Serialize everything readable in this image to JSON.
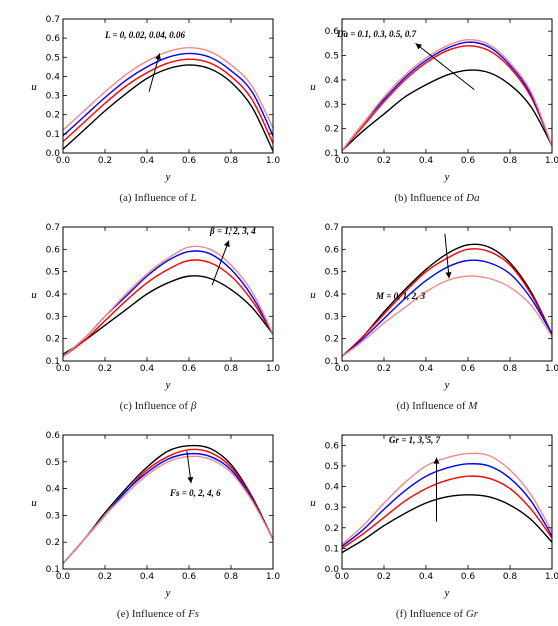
{
  "chart_data": [
    {
      "type": "line",
      "caption_prefix": "(a) Influence of ",
      "caption_var": "L",
      "xlabel": "y",
      "ylabel": "u",
      "xlim": [
        0,
        1
      ],
      "ylim": [
        0,
        0.7
      ],
      "xticks": [
        "0.0",
        "0.2",
        "0.4",
        "0.6",
        "0.8",
        "1.0"
      ],
      "yticks": [
        "0.0",
        "0.1",
        "0.2",
        "0.3",
        "0.4",
        "0.5",
        "0.6",
        "0.7"
      ],
      "annotation": "L = 0, 0.02, 0.04, 0.06",
      "arrow": {
        "from": [
          0.41,
          0.32
        ],
        "to": [
          0.46,
          0.52
        ]
      },
      "series": [
        {
          "color": "#000000",
          "x": [
            0,
            0.1,
            0.2,
            0.3,
            0.4,
            0.5,
            0.6,
            0.7,
            0.8,
            0.9,
            1.0
          ],
          "y": [
            0.02,
            0.12,
            0.22,
            0.31,
            0.39,
            0.44,
            0.46,
            0.44,
            0.37,
            0.24,
            0.01
          ]
        },
        {
          "color": "#ff0000",
          "x": [
            0,
            0.1,
            0.2,
            0.3,
            0.4,
            0.5,
            0.6,
            0.7,
            0.8,
            0.9,
            1.0
          ],
          "y": [
            0.06,
            0.16,
            0.26,
            0.35,
            0.42,
            0.47,
            0.49,
            0.47,
            0.4,
            0.28,
            0.05
          ]
        },
        {
          "color": "#0000ff",
          "x": [
            0,
            0.1,
            0.2,
            0.3,
            0.4,
            0.5,
            0.6,
            0.7,
            0.8,
            0.9,
            1.0
          ],
          "y": [
            0.09,
            0.19,
            0.29,
            0.38,
            0.45,
            0.5,
            0.52,
            0.5,
            0.43,
            0.32,
            0.09
          ]
        },
        {
          "color": "#f08a8a",
          "x": [
            0,
            0.1,
            0.2,
            0.3,
            0.4,
            0.5,
            0.6,
            0.7,
            0.8,
            0.9,
            1.0
          ],
          "y": [
            0.12,
            0.22,
            0.32,
            0.41,
            0.48,
            0.53,
            0.55,
            0.53,
            0.46,
            0.35,
            0.13
          ]
        }
      ]
    },
    {
      "type": "line",
      "caption_prefix": "(b) Influence of ",
      "caption_var": "Da",
      "xlabel": "y",
      "ylabel": "u",
      "xlim": [
        0,
        1
      ],
      "ylim": [
        0.1,
        0.65
      ],
      "xticks": [
        "0.0",
        "0.2",
        "0.4",
        "0.6",
        "0.8",
        "1.0"
      ],
      "yticks": [
        "0.1",
        "0.2",
        "0.3",
        "0.4",
        "0.5",
        "0.6"
      ],
      "annotation": "Da = 0.1, 0.3, 0.5, 0.7",
      "arrow": {
        "from": [
          0.63,
          0.36
        ],
        "to": [
          0.35,
          0.55
        ]
      },
      "series": [
        {
          "color": "#000000",
          "x": [
            0,
            0.1,
            0.2,
            0.3,
            0.4,
            0.5,
            0.6,
            0.7,
            0.8,
            0.9,
            1.0
          ],
          "y": [
            0.11,
            0.19,
            0.26,
            0.33,
            0.38,
            0.42,
            0.44,
            0.43,
            0.38,
            0.29,
            0.13
          ]
        },
        {
          "color": "#ff0000",
          "x": [
            0,
            0.1,
            0.2,
            0.3,
            0.4,
            0.5,
            0.6,
            0.7,
            0.8,
            0.9,
            1.0
          ],
          "y": [
            0.11,
            0.21,
            0.31,
            0.4,
            0.47,
            0.52,
            0.54,
            0.52,
            0.45,
            0.33,
            0.13
          ]
        },
        {
          "color": "#0000ff",
          "x": [
            0,
            0.1,
            0.2,
            0.3,
            0.4,
            0.5,
            0.6,
            0.7,
            0.8,
            0.9,
            1.0
          ],
          "y": [
            0.11,
            0.22,
            0.32,
            0.41,
            0.48,
            0.53,
            0.555,
            0.535,
            0.46,
            0.34,
            0.13
          ]
        },
        {
          "color": "#f08a8a",
          "x": [
            0,
            0.1,
            0.2,
            0.3,
            0.4,
            0.5,
            0.6,
            0.7,
            0.8,
            0.9,
            1.0
          ],
          "y": [
            0.11,
            0.22,
            0.33,
            0.42,
            0.49,
            0.54,
            0.565,
            0.545,
            0.47,
            0.35,
            0.13
          ]
        }
      ]
    },
    {
      "type": "line",
      "caption_prefix": "(c) Influence of ",
      "caption_var": "β",
      "xlabel": "y",
      "ylabel": "u",
      "xlim": [
        0,
        1
      ],
      "ylim": [
        0.1,
        0.7
      ],
      "xticks": [
        "0.0",
        "0.2",
        "0.4",
        "0.6",
        "0.8",
        "1.0"
      ],
      "yticks": [
        "0.1",
        "0.2",
        "0.3",
        "0.4",
        "0.5",
        "0.6",
        "0.7"
      ],
      "annotation": "β = 1, 2, 3, 4",
      "arrow": {
        "from": [
          0.71,
          0.44
        ],
        "to": [
          0.79,
          0.64
        ]
      },
      "series": [
        {
          "color": "#000000",
          "x": [
            0,
            0.1,
            0.2,
            0.3,
            0.4,
            0.5,
            0.6,
            0.7,
            0.8,
            0.9,
            1.0
          ],
          "y": [
            0.13,
            0.19,
            0.26,
            0.33,
            0.4,
            0.45,
            0.48,
            0.47,
            0.42,
            0.34,
            0.22
          ]
        },
        {
          "color": "#ff0000",
          "x": [
            0,
            0.1,
            0.2,
            0.3,
            0.4,
            0.5,
            0.6,
            0.7,
            0.8,
            0.9,
            1.0
          ],
          "y": [
            0.12,
            0.19,
            0.28,
            0.37,
            0.45,
            0.51,
            0.55,
            0.54,
            0.48,
            0.37,
            0.22
          ]
        },
        {
          "color": "#0000ff",
          "x": [
            0,
            0.1,
            0.2,
            0.3,
            0.4,
            0.5,
            0.6,
            0.7,
            0.8,
            0.9,
            1.0
          ],
          "y": [
            0.12,
            0.2,
            0.3,
            0.39,
            0.48,
            0.55,
            0.59,
            0.58,
            0.51,
            0.39,
            0.22
          ]
        },
        {
          "color": "#f08a8a",
          "x": [
            0,
            0.1,
            0.2,
            0.3,
            0.4,
            0.5,
            0.6,
            0.7,
            0.8,
            0.9,
            1.0
          ],
          "y": [
            0.12,
            0.2,
            0.3,
            0.4,
            0.49,
            0.56,
            0.61,
            0.6,
            0.53,
            0.41,
            0.22
          ]
        }
      ]
    },
    {
      "type": "line",
      "caption_prefix": "(d) Influence of ",
      "caption_var": "M",
      "xlabel": "y",
      "ylabel": "u",
      "xlim": [
        0,
        1
      ],
      "ylim": [
        0.1,
        0.7
      ],
      "xticks": [
        "0.0",
        "0.2",
        "0.4",
        "0.6",
        "0.8",
        "1.0"
      ],
      "yticks": [
        "0.1",
        "0.2",
        "0.3",
        "0.4",
        "0.5",
        "0.6",
        "0.7"
      ],
      "annotation": "M = 0, 1, 2, 3",
      "arrow": {
        "from": [
          0.49,
          0.67
        ],
        "to": [
          0.51,
          0.47
        ]
      },
      "series": [
        {
          "color": "#000000",
          "x": [
            0,
            0.1,
            0.2,
            0.3,
            0.4,
            0.5,
            0.6,
            0.7,
            0.8,
            0.9,
            1.0
          ],
          "y": [
            0.12,
            0.21,
            0.32,
            0.42,
            0.51,
            0.58,
            0.62,
            0.61,
            0.54,
            0.41,
            0.22
          ]
        },
        {
          "color": "#ff0000",
          "x": [
            0,
            0.1,
            0.2,
            0.3,
            0.4,
            0.5,
            0.6,
            0.7,
            0.8,
            0.9,
            1.0
          ],
          "y": [
            0.12,
            0.21,
            0.31,
            0.41,
            0.5,
            0.56,
            0.6,
            0.59,
            0.53,
            0.4,
            0.22
          ]
        },
        {
          "color": "#0000ff",
          "x": [
            0,
            0.1,
            0.2,
            0.3,
            0.4,
            0.5,
            0.6,
            0.7,
            0.8,
            0.9,
            1.0
          ],
          "y": [
            0.12,
            0.2,
            0.29,
            0.38,
            0.46,
            0.52,
            0.55,
            0.54,
            0.49,
            0.38,
            0.22
          ]
        },
        {
          "color": "#f08a8a",
          "x": [
            0,
            0.1,
            0.2,
            0.3,
            0.4,
            0.5,
            0.6,
            0.7,
            0.8,
            0.9,
            1.0
          ],
          "y": [
            0.12,
            0.19,
            0.27,
            0.34,
            0.41,
            0.46,
            0.48,
            0.47,
            0.43,
            0.35,
            0.21
          ]
        }
      ]
    },
    {
      "type": "line",
      "caption_prefix": "(e) Influence of ",
      "caption_var": "Fs",
      "xlabel": "y",
      "ylabel": "u",
      "xlim": [
        0,
        1
      ],
      "ylim": [
        0.1,
        0.6
      ],
      "xticks": [
        "0.0",
        "0.2",
        "0.4",
        "0.6",
        "0.8",
        "1.0"
      ],
      "yticks": [
        "0.1",
        "0.2",
        "0.3",
        "0.4",
        "0.5",
        "0.6"
      ],
      "annotation": "Fs = 0, 2, 4, 6",
      "arrow": {
        "from": [
          0.59,
          0.54
        ],
        "to": [
          0.61,
          0.42
        ]
      },
      "series": [
        {
          "color": "#000000",
          "x": [
            0,
            0.1,
            0.2,
            0.3,
            0.4,
            0.5,
            0.6,
            0.7,
            0.8,
            0.9,
            1.0
          ],
          "y": [
            0.12,
            0.21,
            0.31,
            0.4,
            0.48,
            0.54,
            0.56,
            0.55,
            0.49,
            0.37,
            0.21
          ]
        },
        {
          "color": "#ff0000",
          "x": [
            0,
            0.1,
            0.2,
            0.3,
            0.4,
            0.5,
            0.6,
            0.7,
            0.8,
            0.9,
            1.0
          ],
          "y": [
            0.12,
            0.21,
            0.3,
            0.39,
            0.47,
            0.52,
            0.545,
            0.535,
            0.48,
            0.365,
            0.21
          ]
        },
        {
          "color": "#0000ff",
          "x": [
            0,
            0.1,
            0.2,
            0.3,
            0.4,
            0.5,
            0.6,
            0.7,
            0.8,
            0.9,
            1.0
          ],
          "y": [
            0.12,
            0.21,
            0.3,
            0.39,
            0.46,
            0.51,
            0.53,
            0.52,
            0.47,
            0.36,
            0.21
          ]
        },
        {
          "color": "#f08a8a",
          "x": [
            0,
            0.1,
            0.2,
            0.3,
            0.4,
            0.5,
            0.6,
            0.7,
            0.8,
            0.9,
            1.0
          ],
          "y": [
            0.12,
            0.21,
            0.3,
            0.38,
            0.45,
            0.5,
            0.52,
            0.51,
            0.46,
            0.355,
            0.21
          ]
        }
      ]
    },
    {
      "type": "line",
      "caption_prefix": "(f) Influence of ",
      "caption_var": "Gr",
      "xlabel": "y",
      "ylabel": "u",
      "xlim": [
        0,
        1
      ],
      "ylim": [
        0,
        0.65
      ],
      "xticks": [
        "0.0",
        "0.2",
        "0.4",
        "0.6",
        "0.8",
        "1.0"
      ],
      "yticks": [
        "0.0",
        "0.1",
        "0.2",
        "0.3",
        "0.4",
        "0.5",
        "0.6"
      ],
      "annotation": "Gr = 1, 3, 5, 7",
      "arrow": {
        "from": [
          0.45,
          0.23
        ],
        "to": [
          0.45,
          0.54
        ]
      },
      "series": [
        {
          "color": "#000000",
          "x": [
            0,
            0.1,
            0.2,
            0.3,
            0.4,
            0.5,
            0.6,
            0.7,
            0.8,
            0.9,
            1.0
          ],
          "y": [
            0.08,
            0.14,
            0.21,
            0.27,
            0.32,
            0.35,
            0.36,
            0.35,
            0.31,
            0.24,
            0.13
          ]
        },
        {
          "color": "#ff0000",
          "x": [
            0,
            0.1,
            0.2,
            0.3,
            0.4,
            0.5,
            0.6,
            0.7,
            0.8,
            0.9,
            1.0
          ],
          "y": [
            0.1,
            0.17,
            0.25,
            0.33,
            0.39,
            0.43,
            0.45,
            0.44,
            0.39,
            0.29,
            0.15
          ]
        },
        {
          "color": "#0000ff",
          "x": [
            0,
            0.1,
            0.2,
            0.3,
            0.4,
            0.5,
            0.6,
            0.7,
            0.8,
            0.9,
            1.0
          ],
          "y": [
            0.11,
            0.19,
            0.29,
            0.38,
            0.45,
            0.49,
            0.51,
            0.5,
            0.44,
            0.33,
            0.16
          ]
        },
        {
          "color": "#f08a8a",
          "x": [
            0,
            0.1,
            0.2,
            0.3,
            0.4,
            0.5,
            0.6,
            0.7,
            0.8,
            0.9,
            1.0
          ],
          "y": [
            0.12,
            0.21,
            0.32,
            0.42,
            0.5,
            0.54,
            0.56,
            0.55,
            0.48,
            0.36,
            0.18
          ]
        }
      ]
    }
  ]
}
